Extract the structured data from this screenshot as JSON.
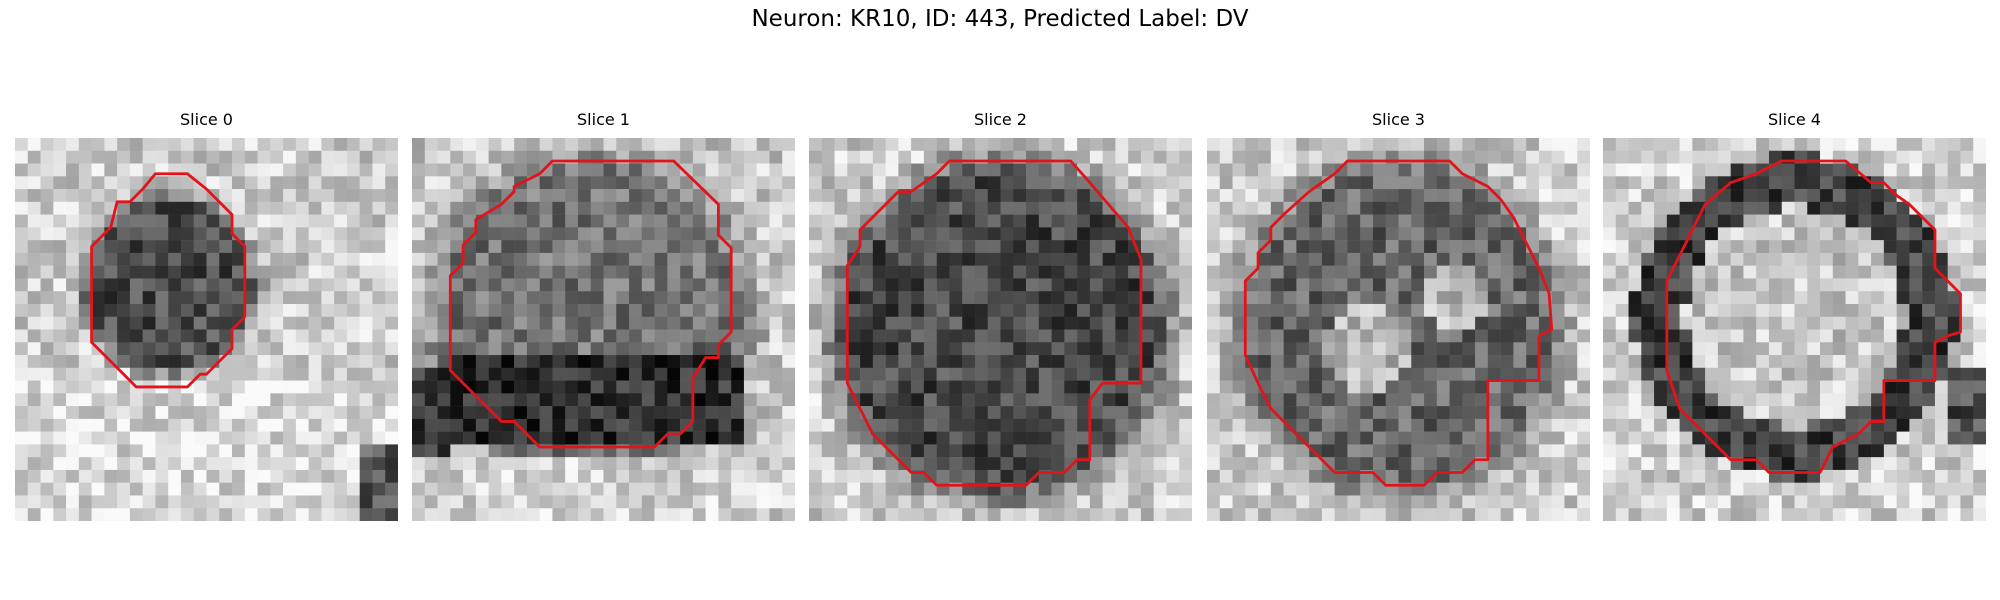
{
  "figure": {
    "title": "Neuron: KR10, ID: 443, Predicted Label: DV"
  },
  "panels": [
    {
      "title": "Slice 0",
      "kind": "small-dark-blob",
      "outline_color": "#e0141a"
    },
    {
      "title": "Slice 1",
      "kind": "large-dark-bottom",
      "outline_color": "#e0141a"
    },
    {
      "title": "Slice 2",
      "kind": "large-dark-disk",
      "outline_color": "#e0141a"
    },
    {
      "title": "Slice 3",
      "kind": "mottled-disk",
      "outline_color": "#e0141a"
    },
    {
      "title": "Slice 4",
      "kind": "ring",
      "outline_color": "#e0141a"
    }
  ]
}
